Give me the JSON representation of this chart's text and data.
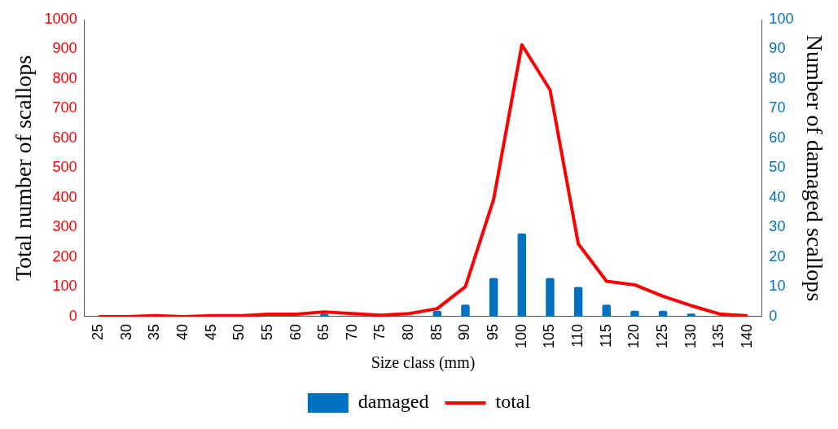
{
  "chart_data": {
    "type": "bar",
    "xlabel": "Size class (mm)",
    "ylabel": "Total number of scallops",
    "y2label": "Number of damaged scallops",
    "categories": [
      "25",
      "30",
      "35",
      "40",
      "45",
      "50",
      "55",
      "60",
      "65",
      "70",
      "75",
      "80",
      "85",
      "90",
      "95",
      "100",
      "105",
      "110",
      "115",
      "120",
      "125",
      "130",
      "135",
      "140"
    ],
    "series": [
      {
        "name": "damaged",
        "type": "bar",
        "axis": "y2",
        "color": "#0070c0",
        "values": [
          0,
          0,
          0,
          0,
          0,
          0,
          null,
          null,
          1,
          0,
          null,
          null,
          2,
          4,
          13,
          28,
          13,
          10,
          4,
          2,
          2,
          1,
          0,
          0
        ]
      },
      {
        "name": "total",
        "type": "line",
        "color": "#ff0000",
        "values": [
          0,
          0,
          3,
          0,
          3,
          3,
          8,
          8,
          16,
          10,
          5,
          10,
          27,
          101,
          395,
          915,
          763,
          245,
          119,
          107,
          69,
          37,
          9,
          3
        ]
      }
    ],
    "ylim": [
      0,
      1000
    ],
    "yticks": [
      0,
      100,
      200,
      300,
      400,
      500,
      600,
      700,
      800,
      900,
      1000
    ],
    "y2lim": [
      0,
      100
    ],
    "y2ticks": [
      0,
      10,
      20,
      30,
      40,
      50,
      60,
      70,
      80,
      90,
      100
    ],
    "grid": false,
    "legend": "bottom",
    "marker": "none",
    "line_style": "solid"
  }
}
